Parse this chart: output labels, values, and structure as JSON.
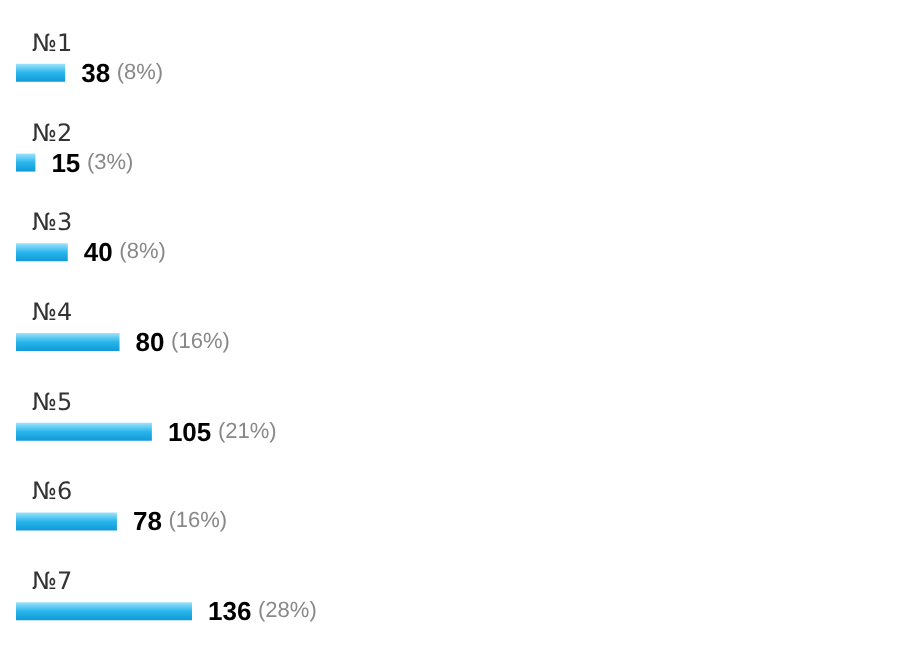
{
  "chart_data": {
    "type": "bar",
    "orientation": "horizontal",
    "categories": [
      "№1",
      "№2",
      "№3",
      "№4",
      "№5",
      "№6",
      "№7"
    ],
    "values": [
      38,
      15,
      40,
      80,
      105,
      78,
      136
    ],
    "value_labels": [
      "38 (8%)",
      "15 (3%)",
      "40 (8%)",
      "80 (16%)",
      "105 (21%)",
      "78 (16%)",
      "136 (28%)"
    ],
    "color": "#29b6ec"
  }
}
